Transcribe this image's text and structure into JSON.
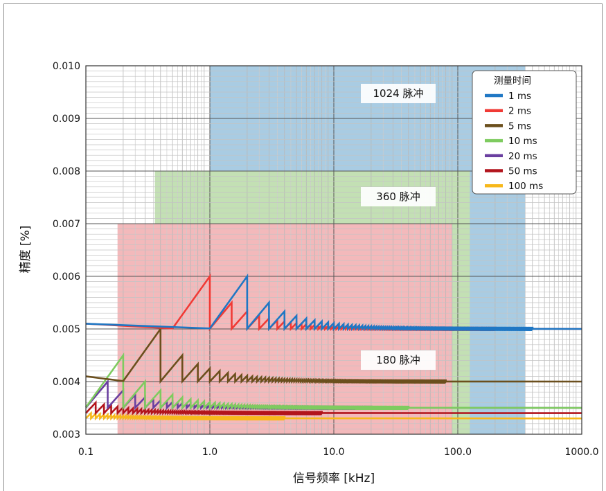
{
  "chart_data": {
    "type": "line",
    "xscale": "log",
    "xlim": [
      0.1,
      1000
    ],
    "ylim": [
      0.003,
      0.01
    ],
    "xlabel": "信号频率 [kHz]",
    "ylabel": "精度 [%]",
    "grid": true,
    "legend_position": "top-right",
    "x_ticks": [
      {
        "value": 0.1,
        "label": "0.1"
      },
      {
        "value": 1,
        "label": "1.0"
      },
      {
        "value": 10,
        "label": "10.0"
      },
      {
        "value": 100,
        "label": "100.0"
      },
      {
        "value": 1000,
        "label": "1000.0"
      }
    ],
    "y_ticks": [
      {
        "value": 0.003,
        "label": "0.003"
      },
      {
        "value": 0.004,
        "label": "0.004"
      },
      {
        "value": 0.005,
        "label": "0.005"
      },
      {
        "value": 0.006,
        "label": "0.006"
      },
      {
        "value": 0.007,
        "label": "0.007"
      },
      {
        "value": 0.008,
        "label": "0.008"
      },
      {
        "value": 0.009,
        "label": "0.009"
      },
      {
        "value": 0.01,
        "label": "0.010"
      }
    ],
    "regions": [
      {
        "label": "1024 脉冲",
        "color": "#a9cce3",
        "x_range": [
          1.0,
          350
        ],
        "y_top": 0.01
      },
      {
        "label": "360 脉冲",
        "color": "#c3e0b4",
        "x_range": [
          0.36,
          125
        ],
        "y_top": 0.008
      },
      {
        "label": "180 脉冲",
        "color": "#f3b9bb",
        "x_range": [
          0.18,
          90
        ],
        "y_top": 0.007
      }
    ],
    "legend_title": "测量时间",
    "series": [
      {
        "name": "1 ms",
        "color": "#1f77c4",
        "period_ms": 1,
        "floor": 0.005
      },
      {
        "name": "2 ms",
        "color": "#f03a35",
        "period_ms": 2,
        "floor": 0.005
      },
      {
        "name": "5 ms",
        "color": "#6b4f1d",
        "period_ms": 5,
        "floor": 0.004
      },
      {
        "name": "10 ms",
        "color": "#7ecb5f",
        "period_ms": 10,
        "floor": 0.0035
      },
      {
        "name": "20 ms",
        "color": "#6a3fa0",
        "period_ms": 20,
        "floor": 0.0035
      },
      {
        "name": "50 ms",
        "color": "#b2141c",
        "period_ms": 50,
        "floor": 0.0034
      },
      {
        "name": "100 ms",
        "color": "#f7b81b",
        "period_ms": 100,
        "floor": 0.0033
      }
    ]
  }
}
